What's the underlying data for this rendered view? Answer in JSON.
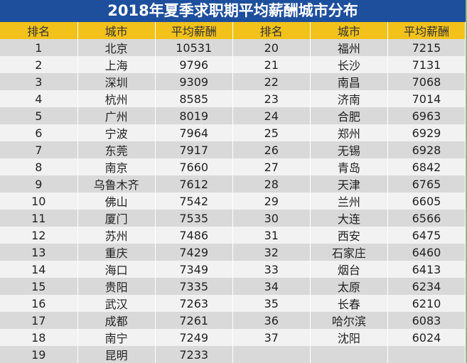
{
  "title": "2018年夏季求职期平均薪酬城市分布",
  "colors": {
    "title_bg": "#1d4f9c",
    "header_bg": "#f2c21b",
    "row_odd": "#d9d9d9",
    "row_even": "#f2f2f2"
  },
  "headers": [
    "排名",
    "城市",
    "平均薪酬",
    "排名",
    "城市",
    "平均薪酬"
  ],
  "rows": [
    [
      "1",
      "北京",
      "10531",
      "20",
      "福州",
      "7215"
    ],
    [
      "2",
      "上海",
      "9796",
      "21",
      "长沙",
      "7131"
    ],
    [
      "3",
      "深圳",
      "9309",
      "22",
      "南昌",
      "7068"
    ],
    [
      "4",
      "杭州",
      "8585",
      "23",
      "济南",
      "7014"
    ],
    [
      "5",
      "广州",
      "8019",
      "24",
      "合肥",
      "6963"
    ],
    [
      "6",
      "宁波",
      "7964",
      "25",
      "郑州",
      "6929"
    ],
    [
      "7",
      "东莞",
      "7917",
      "26",
      "无锡",
      "6928"
    ],
    [
      "8",
      "南京",
      "7660",
      "27",
      "青岛",
      "6842"
    ],
    [
      "9",
      "乌鲁木齐",
      "7612",
      "28",
      "天津",
      "6765"
    ],
    [
      "10",
      "佛山",
      "7542",
      "29",
      "兰州",
      "6605"
    ],
    [
      "11",
      "厦门",
      "7535",
      "30",
      "大连",
      "6566"
    ],
    [
      "12",
      "苏州",
      "7486",
      "31",
      "西安",
      "6475"
    ],
    [
      "13",
      "重庆",
      "7429",
      "32",
      "石家庄",
      "6460"
    ],
    [
      "14",
      "海口",
      "7349",
      "33",
      "烟台",
      "6413"
    ],
    [
      "15",
      "贵阳",
      "7335",
      "34",
      "太原",
      "6234"
    ],
    [
      "16",
      "武汉",
      "7263",
      "35",
      "长春",
      "6210"
    ],
    [
      "17",
      "成都",
      "7261",
      "36",
      "哈尔滨",
      "6083"
    ],
    [
      "18",
      "南宁",
      "7249",
      "37",
      "沈阳",
      "6024"
    ],
    [
      "19",
      "昆明",
      "7233",
      "",
      "",
      ""
    ]
  ]
}
